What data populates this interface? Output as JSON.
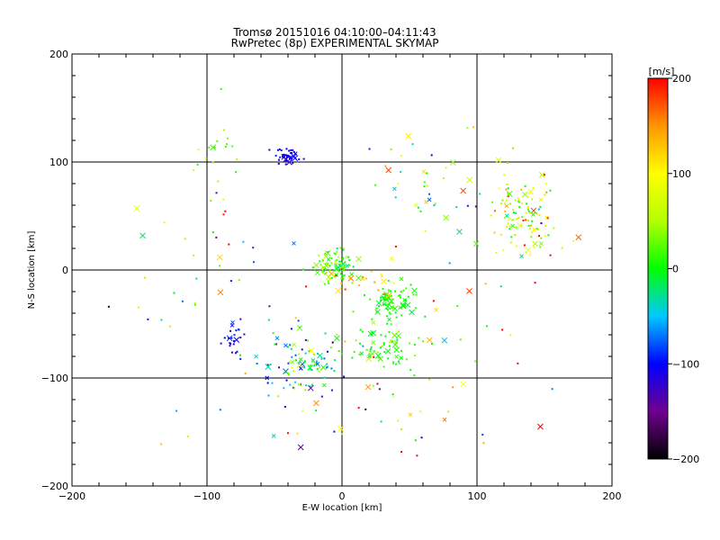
{
  "chart_data": {
    "type": "scatter",
    "title": "Tromsø 20151016 04:10:00–04:11:43",
    "subtitle": "RwPretec (8p) EXPERIMENTAL SKYMAP",
    "xlabel": "E-W location [km]",
    "ylabel": "N-S location [km]",
    "xlim": [
      -200,
      200
    ],
    "ylim": [
      -200,
      200
    ],
    "x_ticks": [
      "−200",
      "−100",
      "0",
      "100",
      "200"
    ],
    "y_ticks": [
      "−200",
      "−100",
      "0",
      "100",
      "200"
    ],
    "grid": true,
    "colorbar": {
      "label": "[m/s]",
      "range": [
        -200,
        200
      ],
      "ticks": [
        "200",
        "100",
        "0",
        "−100",
        "−200"
      ],
      "colormap": "rainbow (black-purple-blue-cyan-green-yellow-red)"
    },
    "clusters": [
      {
        "x": -40,
        "y": 105,
        "sx": 5,
        "sy": 4,
        "n": 45,
        "v": -110,
        "vs": 12
      },
      {
        "x": -95,
        "y": 110,
        "sx": 10,
        "sy": 20,
        "n": 20,
        "v": 40,
        "vs": 20
      },
      {
        "x": -5,
        "y": 5,
        "sx": 8,
        "sy": 7,
        "n": 90,
        "v": 20,
        "vs": 25
      },
      {
        "x": 38,
        "y": -30,
        "sx": 8,
        "sy": 8,
        "n": 70,
        "v": 5,
        "vs": 10
      },
      {
        "x": 30,
        "y": -70,
        "sx": 15,
        "sy": 12,
        "n": 70,
        "v": 15,
        "vs": 20
      },
      {
        "x": -30,
        "y": -85,
        "sx": 15,
        "sy": 15,
        "n": 100,
        "v": -30,
        "vs": 60
      },
      {
        "x": -80,
        "y": -65,
        "sx": 5,
        "sy": 8,
        "n": 25,
        "v": -115,
        "vs": 20
      },
      {
        "x": 135,
        "y": 50,
        "sx": 12,
        "sy": 20,
        "n": 110,
        "v": 70,
        "vs": 60
      },
      {
        "x": 65,
        "y": 80,
        "sx": 25,
        "sy": 20,
        "n": 45,
        "v": 40,
        "vs": 80
      },
      {
        "x": 15,
        "y": -10,
        "sx": 15,
        "sy": 8,
        "n": 25,
        "v": 140,
        "vs": 40
      },
      {
        "x": 0,
        "y": -125,
        "sx": 80,
        "sy": 30,
        "n": 45,
        "v": 60,
        "vs": 110
      },
      {
        "x": -100,
        "y": -10,
        "sx": 30,
        "sy": 40,
        "n": 35,
        "v": 0,
        "vs": 110
      },
      {
        "x": 80,
        "y": -40,
        "sx": 40,
        "sy": 40,
        "n": 25,
        "v": 60,
        "vs": 100
      }
    ]
  }
}
